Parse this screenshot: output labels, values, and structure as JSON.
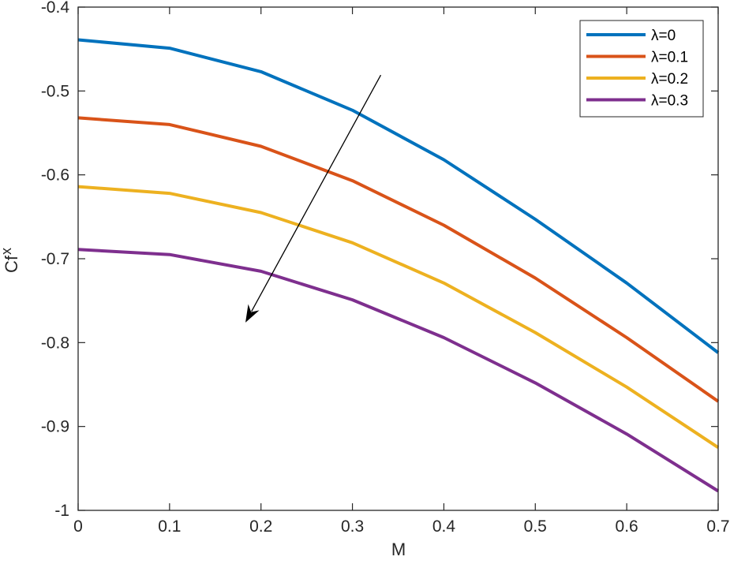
{
  "chart_data": {
    "type": "line",
    "title": "",
    "xlabel": "M",
    "ylabel": "Cf",
    "ylabel_subscript": "x",
    "xlim": [
      0,
      0.7
    ],
    "ylim": [
      -1,
      -0.4
    ],
    "grid": false,
    "legend_position": "upper right",
    "x": [
      0,
      0.1,
      0.2,
      0.3,
      0.4,
      0.5,
      0.6,
      0.7
    ],
    "x_ticks": [
      "0",
      "0.1",
      "0.2",
      "0.3",
      "0.4",
      "0.5",
      "0.6",
      "0.7"
    ],
    "y_ticks": [
      "-0.4",
      "-0.5",
      "-0.6",
      "-0.7",
      "-0.8",
      "-0.9",
      "-1"
    ],
    "series": [
      {
        "name": "λ=0",
        "color": "#0072BD",
        "values": [
          -0.439,
          -0.449,
          -0.477,
          -0.523,
          -0.582,
          -0.653,
          -0.729,
          -0.812
        ]
      },
      {
        "name": "λ=0.1",
        "color": "#D95319",
        "values": [
          -0.532,
          -0.54,
          -0.566,
          -0.607,
          -0.66,
          -0.723,
          -0.794,
          -0.87
        ]
      },
      {
        "name": "λ=0.2",
        "color": "#EDB120",
        "values": [
          -0.614,
          -0.622,
          -0.645,
          -0.681,
          -0.729,
          -0.788,
          -0.853,
          -0.925
        ]
      },
      {
        "name": "λ=0.3",
        "color": "#7E2F8E",
        "values": [
          -0.689,
          -0.695,
          -0.715,
          -0.749,
          -0.794,
          -0.848,
          -0.909,
          -0.977
        ]
      }
    ],
    "annotations": [
      {
        "type": "arrow",
        "description": "increasing λ",
        "from": [
          0.331,
          -0.481
        ],
        "to": [
          0.183,
          -0.776
        ]
      }
    ]
  }
}
